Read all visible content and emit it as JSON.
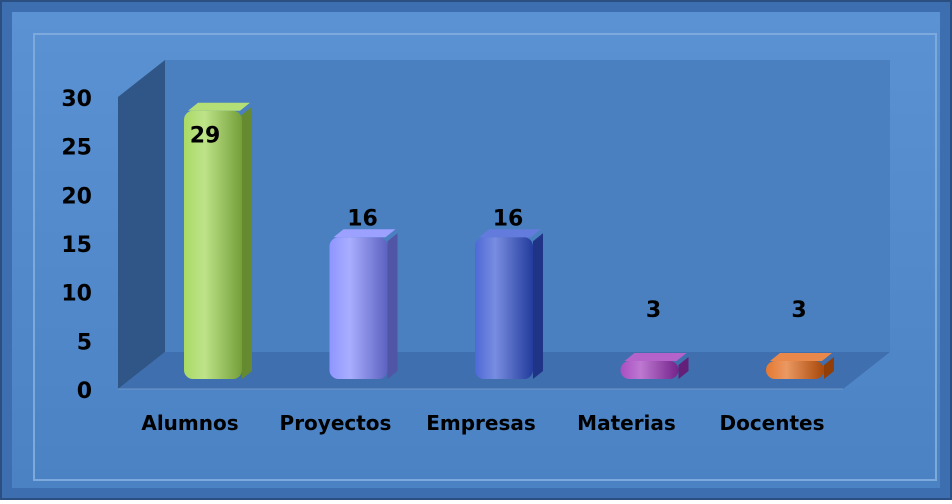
{
  "chart_data": {
    "type": "bar",
    "categories": [
      "Alumnos",
      "Proyectos",
      "Empresas",
      "Materias",
      "Docentes"
    ],
    "values": [
      29,
      16,
      16,
      3,
      3
    ],
    "data_labels": [
      "29",
      "16",
      "16",
      "3",
      "3"
    ],
    "title": "",
    "xlabel": "",
    "ylabel": "",
    "ylim": [
      0,
      30
    ],
    "yticks": [
      "0",
      "5",
      "10",
      "15",
      "20",
      "25",
      "30"
    ],
    "grid": false,
    "legend": "none",
    "bar_colors": [
      "#9bd44a",
      "#7b82ff",
      "#2f4fd0",
      "#9a2fb8",
      "#e0600d"
    ]
  },
  "colors": {
    "background": "#4d86c8",
    "frame": "#2f5f9e",
    "back_wall": "#4a7fc0",
    "side_wall": "#2f5686",
    "floor": "#3f6fae"
  }
}
